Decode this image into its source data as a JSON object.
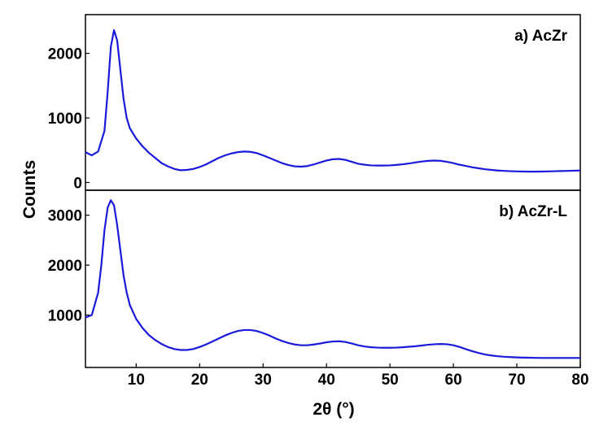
{
  "chart_data": {
    "type": "line",
    "xlabel": "2θ (°)",
    "ylabel": "Counts",
    "xlim": [
      2,
      80
    ],
    "x_ticks": [
      10,
      20,
      30,
      40,
      50,
      60,
      70,
      80
    ],
    "line_color": "#1a1adb",
    "panels": [
      {
        "label": "a) AcZr",
        "ylim": [
          -120,
          2600
        ],
        "y_ticks": [
          0,
          1000,
          2000
        ],
        "points": [
          [
            2,
            470
          ],
          [
            3,
            420
          ],
          [
            4,
            480
          ],
          [
            5,
            800
          ],
          [
            5.5,
            1400
          ],
          [
            6,
            2100
          ],
          [
            6.5,
            2360
          ],
          [
            7,
            2200
          ],
          [
            7.5,
            1750
          ],
          [
            8,
            1300
          ],
          [
            8.5,
            1000
          ],
          [
            9,
            840
          ],
          [
            10,
            680
          ],
          [
            11,
            560
          ],
          [
            12,
            460
          ],
          [
            13,
            380
          ],
          [
            14,
            300
          ],
          [
            15,
            250
          ],
          [
            16,
            210
          ],
          [
            17,
            190
          ],
          [
            18,
            195
          ],
          [
            19,
            210
          ],
          [
            20,
            240
          ],
          [
            21,
            280
          ],
          [
            22,
            330
          ],
          [
            23,
            380
          ],
          [
            24,
            420
          ],
          [
            25,
            450
          ],
          [
            26,
            470
          ],
          [
            27,
            480
          ],
          [
            28,
            475
          ],
          [
            29,
            455
          ],
          [
            30,
            420
          ],
          [
            31,
            380
          ],
          [
            32,
            340
          ],
          [
            33,
            300
          ],
          [
            34,
            270
          ],
          [
            35,
            250
          ],
          [
            36,
            245
          ],
          [
            37,
            255
          ],
          [
            38,
            280
          ],
          [
            39,
            310
          ],
          [
            40,
            340
          ],
          [
            41,
            360
          ],
          [
            42,
            365
          ],
          [
            43,
            350
          ],
          [
            44,
            320
          ],
          [
            45,
            290
          ],
          [
            46,
            275
          ],
          [
            47,
            265
          ],
          [
            48,
            262
          ],
          [
            49,
            262
          ],
          [
            50,
            265
          ],
          [
            51,
            272
          ],
          [
            52,
            282
          ],
          [
            53,
            295
          ],
          [
            54,
            310
          ],
          [
            55,
            325
          ],
          [
            56,
            335
          ],
          [
            57,
            340
          ],
          [
            58,
            335
          ],
          [
            59,
            320
          ],
          [
            60,
            300
          ],
          [
            61,
            275
          ],
          [
            62,
            255
          ],
          [
            63,
            235
          ],
          [
            64,
            220
          ],
          [
            65,
            205
          ],
          [
            66,
            195
          ],
          [
            67,
            185
          ],
          [
            68,
            180
          ],
          [
            69,
            175
          ],
          [
            70,
            172
          ],
          [
            71,
            170
          ],
          [
            72,
            168
          ],
          [
            73,
            168
          ],
          [
            74,
            170
          ],
          [
            75,
            172
          ],
          [
            76,
            175
          ],
          [
            77,
            178
          ],
          [
            78,
            180
          ],
          [
            79,
            183
          ],
          [
            80,
            185
          ]
        ]
      },
      {
        "label": "b) AcZr-L",
        "ylim": [
          -50,
          3500
        ],
        "y_ticks": [
          1000,
          2000,
          3000
        ],
        "points": [
          [
            2,
            950
          ],
          [
            3,
            1000
          ],
          [
            4,
            1450
          ],
          [
            4.5,
            2000
          ],
          [
            5,
            2700
          ],
          [
            5.5,
            3150
          ],
          [
            6,
            3300
          ],
          [
            6.5,
            3200
          ],
          [
            7,
            2800
          ],
          [
            7.5,
            2300
          ],
          [
            8,
            1800
          ],
          [
            8.5,
            1450
          ],
          [
            9,
            1200
          ],
          [
            10,
            920
          ],
          [
            11,
            740
          ],
          [
            12,
            600
          ],
          [
            13,
            500
          ],
          [
            14,
            420
          ],
          [
            15,
            360
          ],
          [
            16,
            320
          ],
          [
            17,
            300
          ],
          [
            18,
            300
          ],
          [
            19,
            320
          ],
          [
            20,
            360
          ],
          [
            21,
            410
          ],
          [
            22,
            470
          ],
          [
            23,
            530
          ],
          [
            24,
            590
          ],
          [
            25,
            640
          ],
          [
            26,
            680
          ],
          [
            27,
            700
          ],
          [
            28,
            700
          ],
          [
            29,
            680
          ],
          [
            30,
            640
          ],
          [
            31,
            590
          ],
          [
            32,
            530
          ],
          [
            33,
            480
          ],
          [
            34,
            440
          ],
          [
            35,
            410
          ],
          [
            36,
            395
          ],
          [
            37,
            395
          ],
          [
            38,
            410
          ],
          [
            39,
            430
          ],
          [
            40,
            455
          ],
          [
            41,
            470
          ],
          [
            42,
            475
          ],
          [
            43,
            460
          ],
          [
            44,
            430
          ],
          [
            45,
            395
          ],
          [
            46,
            370
          ],
          [
            47,
            355
          ],
          [
            48,
            348
          ],
          [
            49,
            345
          ],
          [
            50,
            345
          ],
          [
            51,
            348
          ],
          [
            52,
            355
          ],
          [
            53,
            365
          ],
          [
            54,
            375
          ],
          [
            55,
            390
          ],
          [
            56,
            405
          ],
          [
            57,
            415
          ],
          [
            58,
            420
          ],
          [
            59,
            415
          ],
          [
            60,
            395
          ],
          [
            61,
            360
          ],
          [
            62,
            315
          ],
          [
            63,
            275
          ],
          [
            64,
            240
          ],
          [
            65,
            210
          ],
          [
            66,
            190
          ],
          [
            67,
            175
          ],
          [
            68,
            165
          ],
          [
            69,
            158
          ],
          [
            70,
            152
          ],
          [
            71,
            148
          ],
          [
            72,
            145
          ],
          [
            73,
            142
          ],
          [
            74,
            140
          ],
          [
            75,
            140
          ],
          [
            76,
            140
          ],
          [
            77,
            140
          ],
          [
            78,
            140
          ],
          [
            79,
            140
          ],
          [
            80,
            140
          ]
        ]
      }
    ]
  }
}
